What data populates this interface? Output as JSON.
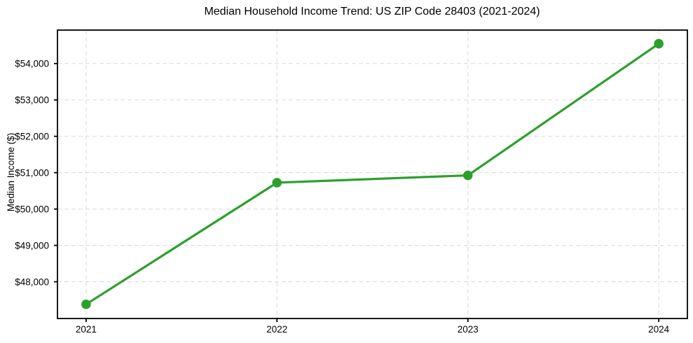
{
  "chart_data": {
    "type": "line",
    "title": "Median Household Income Trend: US ZIP Code 28403 (2021-2024)",
    "xlabel": "",
    "ylabel": "Median Income ($)",
    "x": [
      2021,
      2022,
      2023,
      2024
    ],
    "values": [
      47380,
      50725,
      50925,
      54545
    ],
    "x_tick_labels": [
      "2021",
      "2022",
      "2023",
      "2024"
    ],
    "y_ticks": [
      48000,
      49000,
      50000,
      51000,
      52000,
      53000,
      54000
    ],
    "y_tick_labels": [
      "$48,000",
      "$49,000",
      "$50,000",
      "$51,000",
      "$52,000",
      "$53,000",
      "$54,000"
    ],
    "xlim": [
      2020.85,
      2024.15
    ],
    "ylim": [
      46990,
      54920
    ],
    "grid": true,
    "legend": false,
    "colors": {
      "line": "#2ca02c",
      "marker": "#2ca02c",
      "grid": "#d9d9d9",
      "axis": "#000000",
      "text": "#000000",
      "background": "#ffffff"
    }
  }
}
